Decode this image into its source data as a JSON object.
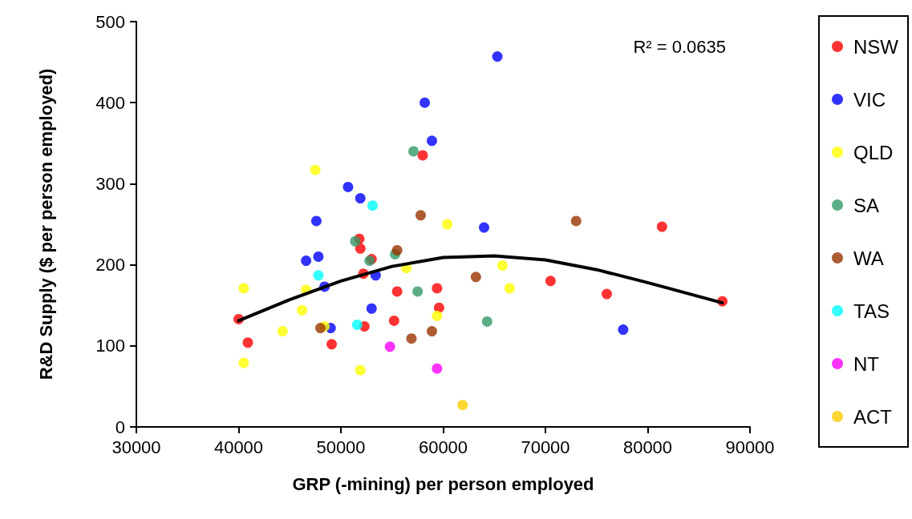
{
  "chart_data": {
    "type": "scatter",
    "xlabel": "GRP (-mining) per person employed",
    "ylabel": "R&D Supply ($ per person employed)",
    "xlim": [
      30000,
      90000
    ],
    "xticks": [
      30000,
      40000,
      50000,
      60000,
      70000,
      80000,
      90000
    ],
    "ylim": [
      0,
      500
    ],
    "yticks": [
      0,
      100,
      200,
      300,
      400,
      500
    ],
    "grid": false,
    "legend": "right",
    "marker": "circle",
    "annotations": [
      "R² = 0.0635"
    ],
    "series": [
      {
        "name": "NSW",
        "color": "#ff0000",
        "x": [
          51800,
          51900,
          53000,
          52200,
          40000,
          52300,
          40900,
          49100,
          58000,
          55500,
          59400,
          59600,
          55200,
          70500,
          76000,
          81400,
          87300
        ],
        "values": [
          232,
          220,
          207,
          189,
          133,
          124,
          104,
          102,
          335,
          167,
          171,
          147,
          131,
          180,
          164,
          247,
          155
        ]
      },
      {
        "name": "VIC",
        "color": "#0000ff",
        "x": [
          46600,
          47800,
          48400,
          53400,
          53000,
          49000,
          50700,
          51900,
          47600,
          65300,
          58200,
          58900,
          64000,
          77600
        ],
        "values": [
          205,
          210,
          173,
          187,
          146,
          122,
          296,
          282,
          254,
          457,
          400,
          353,
          246,
          120
        ]
      },
      {
        "name": "QLD",
        "color": "#ffff00",
        "x": [
          40500,
          46600,
          46200,
          44300,
          48400,
          40500,
          51900,
          47500,
          60400,
          56400,
          65800,
          66500,
          59400
        ],
        "values": [
          171,
          169,
          144,
          118,
          124,
          79,
          70,
          317,
          250,
          196,
          199,
          171,
          137
        ]
      },
      {
        "name": "SA",
        "color": "#339966",
        "x": [
          51400,
          52800,
          57100,
          55300,
          57500,
          64300
        ],
        "values": [
          229,
          205,
          340,
          213,
          167,
          130
        ]
      },
      {
        "name": "WA",
        "color": "#993300",
        "x": [
          48000,
          57800,
          55500,
          63200,
          58900,
          56900,
          73000
        ],
        "values": [
          122,
          261,
          218,
          185,
          118,
          109,
          254
        ]
      },
      {
        "name": "TAS",
        "color": "#00ffff",
        "x": [
          47800,
          51600,
          53100
        ],
        "values": [
          187,
          126,
          273
        ]
      },
      {
        "name": "NT",
        "color": "#ff00ff",
        "x": [
          54800,
          59400
        ],
        "values": [
          99,
          72
        ]
      },
      {
        "name": "ACT",
        "color": "#ffcc00",
        "x": [
          61900
        ],
        "values": [
          27
        ]
      },
      {
        "type": "line",
        "color": "#000000",
        "marker": "none",
        "x": [
          40000,
          45000,
          50000,
          55000,
          60000,
          65000,
          70000,
          75000,
          80000,
          87300
        ],
        "values": [
          131,
          157,
          180,
          198,
          209,
          211,
          206,
          194,
          178,
          153
        ]
      }
    ]
  }
}
